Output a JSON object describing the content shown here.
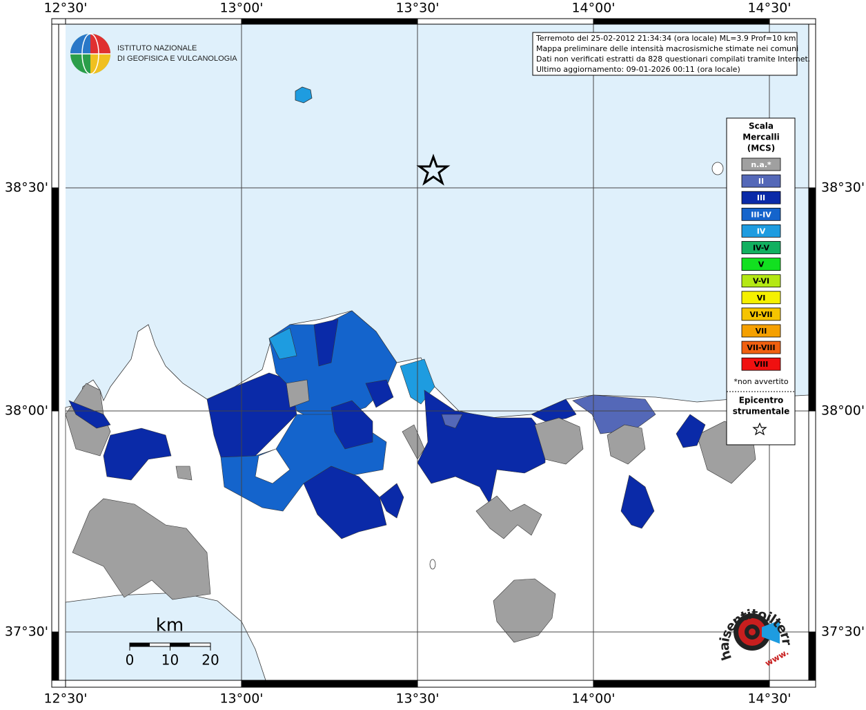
{
  "info_box": [
    "Terremoto del 25-02-2012 21:34:34 (ora locale) ML=3.9 Prof=10 km",
    "Mappa preliminare delle intensità macrosismiche stimate nei comuni",
    "Dati non verificati estratti da 828 questionari compilati tramite Internet.",
    "Ultimo aggiornamento: 09-01-2026 00:11 (ora locale)"
  ],
  "logo": [
    "ISTITUTO NAZIONALE",
    "DI GEOFISICA E VULCANOLOGIA"
  ],
  "lon_labels": [
    "12°30'",
    "13°00'",
    "13°30'",
    "14°00'",
    "14°30'"
  ],
  "lat_labels": [
    "38°30'",
    "38°00'",
    "37°30'"
  ],
  "legend": {
    "title": [
      "Scala",
      "Mercalli",
      "(MCS)"
    ],
    "items": [
      {
        "label": "n.a.*",
        "color": "#a0a0a0",
        "text_color": "#ffffff"
      },
      {
        "label": "II",
        "color": "#5468b8",
        "text_color": "#ffffff"
      },
      {
        "label": "III",
        "color": "#0a2aa8",
        "text_color": "#ffffff"
      },
      {
        "label": "III-IV",
        "color": "#1464cc",
        "text_color": "#ffffff"
      },
      {
        "label": "IV",
        "color": "#1e9ce0",
        "text_color": "#ffffff"
      },
      {
        "label": "IV-V",
        "color": "#12b060",
        "text_color": "#000000"
      },
      {
        "label": "V",
        "color": "#12e020",
        "text_color": "#000000"
      },
      {
        "label": "V-VI",
        "color": "#b4e814",
        "text_color": "#000000"
      },
      {
        "label": "VI",
        "color": "#f5f000",
        "text_color": "#000000"
      },
      {
        "label": "VI-VII",
        "color": "#f5c400",
        "text_color": "#000000"
      },
      {
        "label": "VII",
        "color": "#f5a000",
        "text_color": "#000000"
      },
      {
        "label": "VII-VIII",
        "color": "#f06010",
        "text_color": "#000000"
      },
      {
        "label": "VIII",
        "color": "#f01010",
        "text_color": "#000000"
      }
    ],
    "note": "*non avvertito",
    "epicenter": [
      "Epicentro",
      "strumentale"
    ]
  },
  "scale_bar": {
    "unit": "km",
    "ticks": [
      0,
      10,
      20
    ]
  },
  "watermark": {
    "site": "haisentitoilterremoto.it",
    "prefix": "www."
  }
}
